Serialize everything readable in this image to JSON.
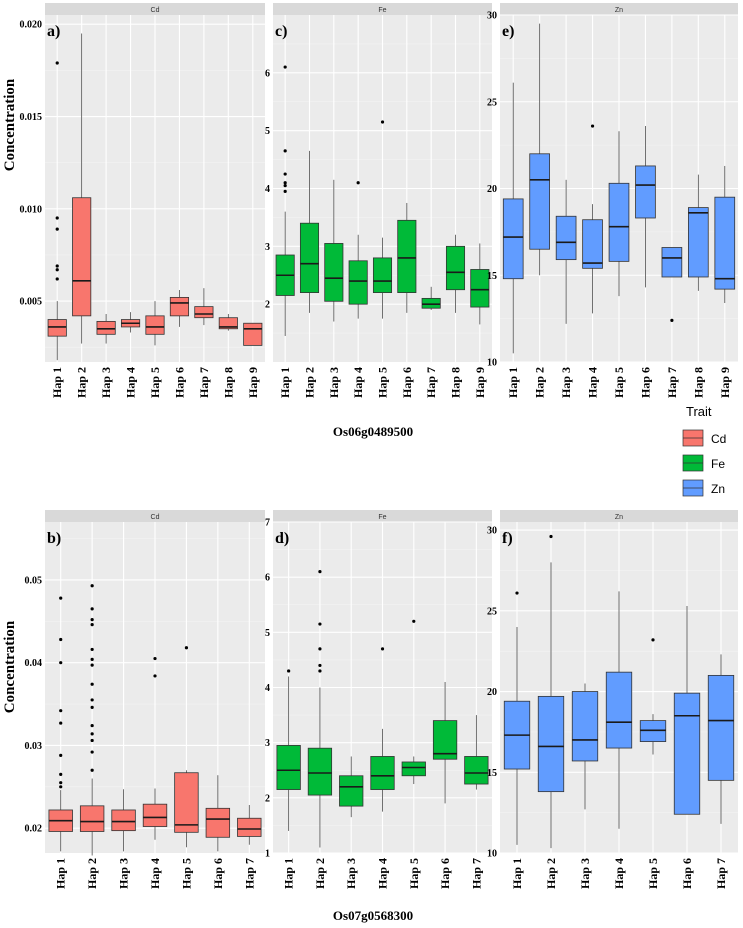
{
  "legend": {
    "title": "Trait",
    "items": [
      {
        "label": "Cd",
        "color": "#F8766D"
      },
      {
        "label": "Fe",
        "color": "#00BA38"
      },
      {
        "label": "Zn",
        "color": "#619CFF"
      }
    ]
  },
  "genes": [
    "Os06g0489500",
    "Os07g0568300"
  ],
  "ylabel": "Concentration",
  "chart_data": [
    {
      "type": "box",
      "panel": "a)",
      "strip": "Cd",
      "trait": "Cd",
      "gene": "Os06g0489500",
      "ylim": [
        0.0017,
        0.0205
      ],
      "yticks": [
        0.005,
        0.01,
        0.015,
        0.02
      ],
      "ytick_labels": [
        "0.005",
        "0.010",
        "0.015",
        "0.020"
      ],
      "categories": [
        "Hap 1",
        "Hap 2",
        "Hap 3",
        "Hap 4",
        "Hap 5",
        "Hap 6",
        "Hap 7",
        "Hap 8",
        "Hap 9"
      ],
      "boxes": [
        {
          "min": 0.0018,
          "q1": 0.0031,
          "median": 0.0036,
          "q3": 0.004,
          "max": 0.005,
          "outliers": [
            0.0179,
            0.0095,
            0.0089,
            0.0069,
            0.0067,
            0.0062
          ]
        },
        {
          "min": 0.0027,
          "q1": 0.0042,
          "median": 0.0061,
          "q3": 0.0106,
          "max": 0.0195,
          "outliers": []
        },
        {
          "min": 0.0027,
          "q1": 0.0032,
          "median": 0.0035,
          "q3": 0.0039,
          "max": 0.0043,
          "outliers": []
        },
        {
          "min": 0.0033,
          "q1": 0.0036,
          "median": 0.0038,
          "q3": 0.004,
          "max": 0.0044,
          "outliers": []
        },
        {
          "min": 0.0026,
          "q1": 0.0032,
          "median": 0.0036,
          "q3": 0.0042,
          "max": 0.005,
          "outliers": []
        },
        {
          "min": 0.0036,
          "q1": 0.0042,
          "median": 0.0049,
          "q3": 0.0052,
          "max": 0.0056,
          "outliers": []
        },
        {
          "min": 0.0037,
          "q1": 0.0041,
          "median": 0.0043,
          "q3": 0.0047,
          "max": 0.0057,
          "outliers": []
        },
        {
          "min": 0.0034,
          "q1": 0.0035,
          "median": 0.0036,
          "q3": 0.0041,
          "max": 0.0043,
          "outliers": []
        },
        {
          "min": 0.0026,
          "q1": 0.0026,
          "median": 0.0035,
          "q3": 0.0038,
          "max": 0.0038,
          "outliers": []
        }
      ]
    },
    {
      "type": "box",
      "panel": "c)",
      "strip": "Fe",
      "trait": "Fe",
      "gene": "Os06g0489500",
      "ylim": [
        1.0,
        7.0
      ],
      "yticks": [
        2,
        3,
        4,
        5,
        6
      ],
      "ytick_labels": [
        "2",
        "3",
        "4",
        "5",
        "6"
      ],
      "categories": [
        "Hap 1",
        "Hap 2",
        "Hap 3",
        "Hap 4",
        "Hap 5",
        "Hap 6",
        "Hap 7",
        "Hap 8",
        "Hap 9"
      ],
      "boxes": [
        {
          "min": 1.45,
          "q1": 2.15,
          "median": 2.5,
          "q3": 2.85,
          "max": 3.6,
          "outliers": [
            6.1,
            4.65,
            4.25,
            4.1,
            4.05,
            3.95
          ]
        },
        {
          "min": 1.85,
          "q1": 2.2,
          "median": 2.7,
          "q3": 3.4,
          "max": 4.65,
          "outliers": []
        },
        {
          "min": 1.7,
          "q1": 2.05,
          "median": 2.45,
          "q3": 3.05,
          "max": 4.15,
          "outliers": []
        },
        {
          "min": 1.75,
          "q1": 2.0,
          "median": 2.4,
          "q3": 2.75,
          "max": 3.2,
          "outliers": [
            4.1
          ]
        },
        {
          "min": 1.75,
          "q1": 2.2,
          "median": 2.4,
          "q3": 2.8,
          "max": 3.15,
          "outliers": [
            5.15
          ]
        },
        {
          "min": 1.85,
          "q1": 2.2,
          "median": 2.8,
          "q3": 3.45,
          "max": 3.75,
          "outliers": []
        },
        {
          "min": 1.9,
          "q1": 1.93,
          "median": 2.0,
          "q3": 2.1,
          "max": 2.3,
          "outliers": []
        },
        {
          "min": 1.85,
          "q1": 2.25,
          "median": 2.55,
          "q3": 3.0,
          "max": 3.2,
          "outliers": []
        },
        {
          "min": 1.65,
          "q1": 1.95,
          "median": 2.25,
          "q3": 2.6,
          "max": 3.05,
          "outliers": []
        }
      ]
    },
    {
      "type": "box",
      "panel": "e)",
      "strip": "Zn",
      "trait": "Zn",
      "gene": "Os06g0489500",
      "ylim": [
        10,
        30
      ],
      "yticks": [
        10,
        15,
        20,
        25,
        30
      ],
      "ytick_labels": [
        "10",
        "15",
        "20",
        "25",
        "30"
      ],
      "categories": [
        "Hap 1",
        "Hap 2",
        "Hap 3",
        "Hap 4",
        "Hap 5",
        "Hap 6",
        "Hap 7",
        "Hap 8",
        "Hap 9"
      ],
      "boxes": [
        {
          "min": 10.5,
          "q1": 14.8,
          "median": 17.2,
          "q3": 19.4,
          "max": 26.1,
          "outliers": []
        },
        {
          "min": 15.0,
          "q1": 16.5,
          "median": 20.5,
          "q3": 22.0,
          "max": 29.5,
          "outliers": []
        },
        {
          "min": 12.2,
          "q1": 15.9,
          "median": 16.9,
          "q3": 18.4,
          "max": 20.5,
          "outliers": []
        },
        {
          "min": 12.8,
          "q1": 15.4,
          "median": 15.7,
          "q3": 18.2,
          "max": 19.1,
          "outliers": [
            23.6
          ]
        },
        {
          "min": 13.8,
          "q1": 15.8,
          "median": 17.8,
          "q3": 20.3,
          "max": 23.3,
          "outliers": []
        },
        {
          "min": 14.3,
          "q1": 18.3,
          "median": 20.2,
          "q3": 21.3,
          "max": 23.6,
          "outliers": []
        },
        {
          "min": 14.9,
          "q1": 14.9,
          "median": 16.0,
          "q3": 16.6,
          "max": 16.6,
          "outliers": [
            12.4
          ]
        },
        {
          "min": 14.1,
          "q1": 14.9,
          "median": 18.6,
          "q3": 18.9,
          "max": 20.8,
          "outliers": []
        },
        {
          "min": 13.4,
          "q1": 14.2,
          "median": 14.8,
          "q3": 19.5,
          "max": 21.3,
          "outliers": []
        }
      ]
    },
    {
      "type": "box",
      "panel": "b)",
      "strip": "Cd",
      "trait": "Cd",
      "gene": "Os07g0568300",
      "ylim": [
        0.017,
        0.057
      ],
      "yticks": [
        0.02,
        0.03,
        0.04,
        0.05
      ],
      "ytick_labels": [
        "0.02",
        "0.03",
        "0.04",
        "0.05"
      ],
      "categories": [
        "Hap 1",
        "Hap 2",
        "Hap 3",
        "Hap 4",
        "Hap 5",
        "Hap 6",
        "Hap 7"
      ],
      "boxes": [
        {
          "min": 0.0172,
          "q1": 0.0196,
          "median": 0.0209,
          "q3": 0.0222,
          "max": 0.0246,
          "outliers": [
            0.0478,
            0.0428,
            0.04,
            0.0342,
            0.0327,
            0.0288,
            0.0265,
            0.0255,
            0.025
          ]
        },
        {
          "min": 0.0167,
          "q1": 0.0196,
          "median": 0.0208,
          "q3": 0.0227,
          "max": 0.026,
          "outliers": [
            0.0493,
            0.0465,
            0.0452,
            0.0446,
            0.0416,
            0.0404,
            0.0397,
            0.0374,
            0.0355,
            0.0346,
            0.0324,
            0.0314,
            0.0306,
            0.0292,
            0.027
          ]
        },
        {
          "min": 0.0172,
          "q1": 0.0197,
          "median": 0.0208,
          "q3": 0.0222,
          "max": 0.0247,
          "outliers": []
        },
        {
          "min": 0.0186,
          "q1": 0.0202,
          "median": 0.0213,
          "q3": 0.0229,
          "max": 0.0248,
          "outliers": [
            0.0405,
            0.0384
          ]
        },
        {
          "min": 0.0177,
          "q1": 0.0195,
          "median": 0.0204,
          "q3": 0.0267,
          "max": 0.027,
          "outliers": [
            0.0418
          ]
        },
        {
          "min": 0.0172,
          "q1": 0.0189,
          "median": 0.0211,
          "q3": 0.0224,
          "max": 0.0264,
          "outliers": []
        },
        {
          "min": 0.018,
          "q1": 0.019,
          "median": 0.0199,
          "q3": 0.0212,
          "max": 0.0228,
          "outliers": []
        }
      ]
    },
    {
      "type": "box",
      "panel": "d)",
      "strip": "Fe",
      "trait": "Fe",
      "gene": "Os07g0568300",
      "ylim": [
        1.0,
        7.0
      ],
      "yticks": [
        1,
        2,
        3,
        4,
        5,
        6,
        7
      ],
      "ytick_labels": [
        "1",
        "2",
        "3",
        "4",
        "5",
        "6",
        "7"
      ],
      "categories": [
        "Hap 1",
        "Hap 2",
        "Hap 3",
        "Hap 4",
        "Hap 5",
        "Hap 6",
        "Hap 7"
      ],
      "boxes": [
        {
          "min": 1.4,
          "q1": 2.15,
          "median": 2.5,
          "q3": 2.95,
          "max": 4.2,
          "outliers": [
            4.3
          ]
        },
        {
          "min": 1.1,
          "q1": 2.05,
          "median": 2.45,
          "q3": 2.9,
          "max": 4.0,
          "outliers": [
            6.1,
            5.15,
            4.7,
            4.4,
            4.3
          ]
        },
        {
          "min": 1.65,
          "q1": 1.85,
          "median": 2.2,
          "q3": 2.4,
          "max": 2.75,
          "outliers": []
        },
        {
          "min": 1.75,
          "q1": 2.15,
          "median": 2.4,
          "q3": 2.75,
          "max": 3.25,
          "outliers": [
            4.7
          ]
        },
        {
          "min": 2.25,
          "q1": 2.4,
          "median": 2.55,
          "q3": 2.65,
          "max": 2.75,
          "outliers": [
            5.2
          ]
        },
        {
          "min": 1.9,
          "q1": 2.7,
          "median": 2.8,
          "q3": 3.4,
          "max": 4.1,
          "outliers": []
        },
        {
          "min": 2.15,
          "q1": 2.25,
          "median": 2.45,
          "q3": 2.75,
          "max": 3.5,
          "outliers": []
        }
      ]
    },
    {
      "type": "box",
      "panel": "f)",
      "strip": "Zn",
      "trait": "Zn",
      "gene": "Os07g0568300",
      "ylim": [
        10,
        30.5
      ],
      "yticks": [
        10,
        15,
        20,
        25,
        30
      ],
      "ytick_labels": [
        "10",
        "15",
        "20",
        "25",
        "30"
      ],
      "categories": [
        "Hap 1",
        "Hap 2",
        "Hap 3",
        "Hap 4",
        "Hap 5",
        "Hap 6",
        "Hap 7"
      ],
      "boxes": [
        {
          "min": 10.5,
          "q1": 15.2,
          "median": 17.3,
          "q3": 19.4,
          "max": 24.0,
          "outliers": [
            26.1
          ]
        },
        {
          "min": 10.3,
          "q1": 13.8,
          "median": 16.6,
          "q3": 19.7,
          "max": 28.0,
          "outliers": [
            29.6
          ]
        },
        {
          "min": 12.7,
          "q1": 15.7,
          "median": 17.0,
          "q3": 20.0,
          "max": 20.5,
          "outliers": []
        },
        {
          "min": 11.5,
          "q1": 16.5,
          "median": 18.1,
          "q3": 21.2,
          "max": 26.2,
          "outliers": []
        },
        {
          "min": 16.1,
          "q1": 16.9,
          "median": 17.6,
          "q3": 18.2,
          "max": 18.6,
          "outliers": [
            23.2
          ]
        },
        {
          "min": 12.4,
          "q1": 12.4,
          "median": 18.5,
          "q3": 19.9,
          "max": 25.3,
          "outliers": []
        },
        {
          "min": 11.8,
          "q1": 14.5,
          "median": 18.2,
          "q3": 21.0,
          "max": 22.3,
          "outliers": []
        }
      ]
    }
  ]
}
